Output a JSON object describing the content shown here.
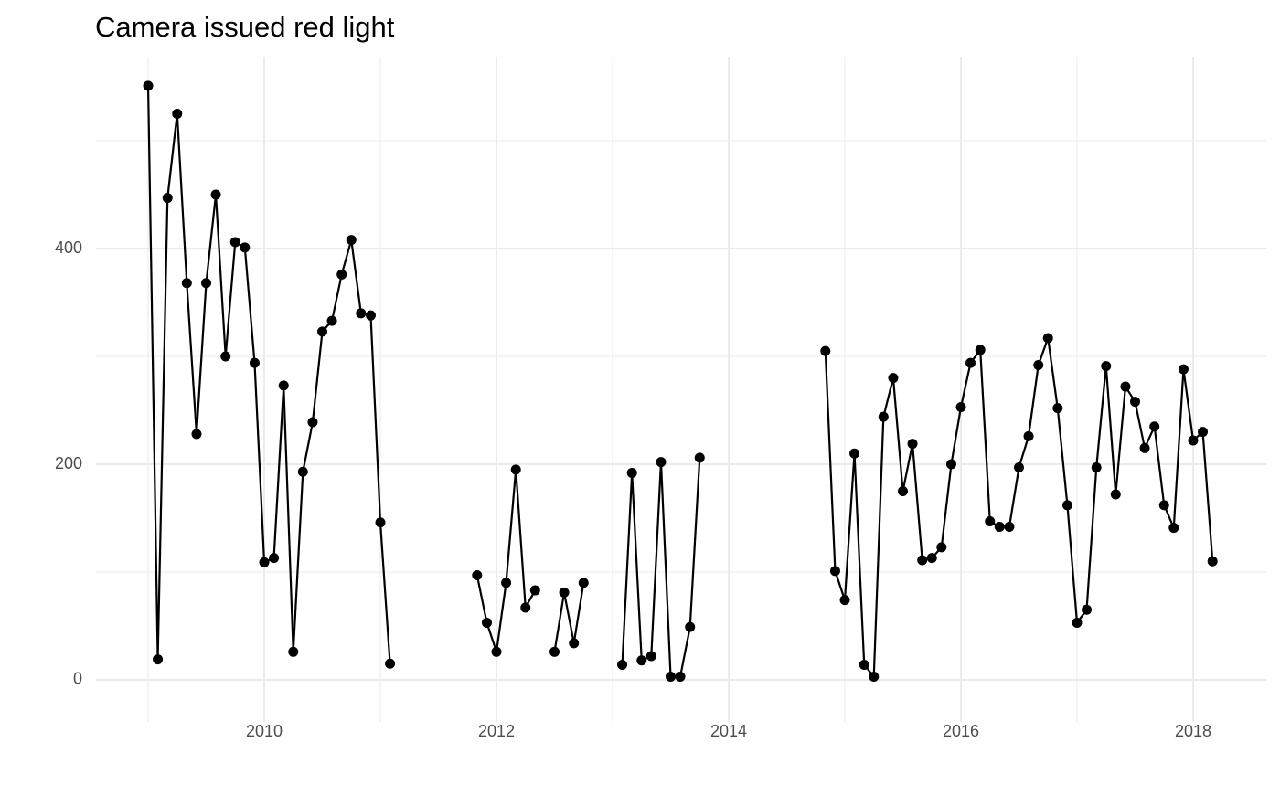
{
  "chart_data": {
    "type": "line",
    "title": "Camera issued red light",
    "x": [
      2009,
      2009.083,
      2009.167,
      2009.25,
      2009.333,
      2009.417,
      2009.5,
      2009.583,
      2009.667,
      2009.75,
      2009.833,
      2009.917,
      2010,
      2010.083,
      2010.167,
      2010.25,
      2010.333,
      2010.417,
      2010.5,
      2010.583,
      2010.667,
      2010.75,
      2010.833,
      2010.917,
      2011,
      2011.083,
      2011.167,
      2011.25,
      2011.333,
      2011.417,
      2011.5,
      2011.583,
      2011.667,
      2011.75,
      2011.833,
      2011.917,
      2012,
      2012.083,
      2012.167,
      2012.25,
      2012.333,
      2012.417,
      2012.5,
      2012.583,
      2012.667,
      2012.75,
      2012.833,
      2012.917,
      2013,
      2013.083,
      2013.167,
      2013.25,
      2013.333,
      2013.417,
      2013.5,
      2013.583,
      2013.667,
      2013.75,
      2013.833,
      2013.917,
      2014,
      2014.083,
      2014.167,
      2014.25,
      2014.333,
      2014.417,
      2014.5,
      2014.583,
      2014.667,
      2014.75,
      2014.833,
      2014.917,
      2015,
      2015.083,
      2015.167,
      2015.25,
      2015.333,
      2015.417,
      2015.5,
      2015.583,
      2015.667,
      2015.75,
      2015.833,
      2015.917,
      2016,
      2016.083,
      2016.167,
      2016.25,
      2016.333,
      2016.417,
      2016.5,
      2016.583,
      2016.667,
      2016.75,
      2016.833,
      2016.917,
      2017,
      2017.083,
      2017.167,
      2017.25,
      2017.333,
      2017.417,
      2017.5,
      2017.583,
      2017.667,
      2017.75,
      2017.833,
      2017.917,
      2018,
      2018.083,
      2018.167
    ],
    "series": [
      {
        "color": "#000000",
        "values": [
          551,
          19,
          447,
          525,
          368,
          228,
          368,
          450,
          300,
          406,
          401,
          294,
          109,
          113,
          273,
          26,
          193,
          239,
          323,
          333,
          376,
          408,
          340,
          338,
          146,
          15,
          null,
          null,
          null,
          null,
          null,
          null,
          null,
          null,
          97,
          53,
          26,
          90,
          195,
          67,
          83,
          null,
          26,
          81,
          34,
          90,
          null,
          null,
          null,
          14,
          192,
          18,
          22,
          202,
          3,
          3,
          49,
          206,
          null,
          null,
          null,
          null,
          null,
          null,
          null,
          null,
          null,
          null,
          null,
          null,
          305,
          101,
          74,
          210,
          14,
          3,
          244,
          280,
          175,
          219,
          111,
          113,
          123,
          200,
          253,
          294,
          306,
          147,
          142,
          142,
          197,
          226,
          292,
          317,
          252,
          162,
          53,
          65,
          197,
          291,
          172,
          272,
          258,
          215,
          235,
          162,
          141,
          288,
          222,
          230,
          110
        ]
      }
    ],
    "xlim": [
      2008.551,
      2018.63
    ],
    "xticks": [
      2010,
      2012,
      2014,
      2016,
      2018
    ],
    "ylim": [
      -39,
      578
    ],
    "yticks": [
      0,
      200,
      400
    ],
    "minor_xticks": [
      2009,
      2011,
      2013,
      2015,
      2017
    ],
    "minor_yticks": [
      100,
      300,
      500
    ],
    "grid": true
  }
}
